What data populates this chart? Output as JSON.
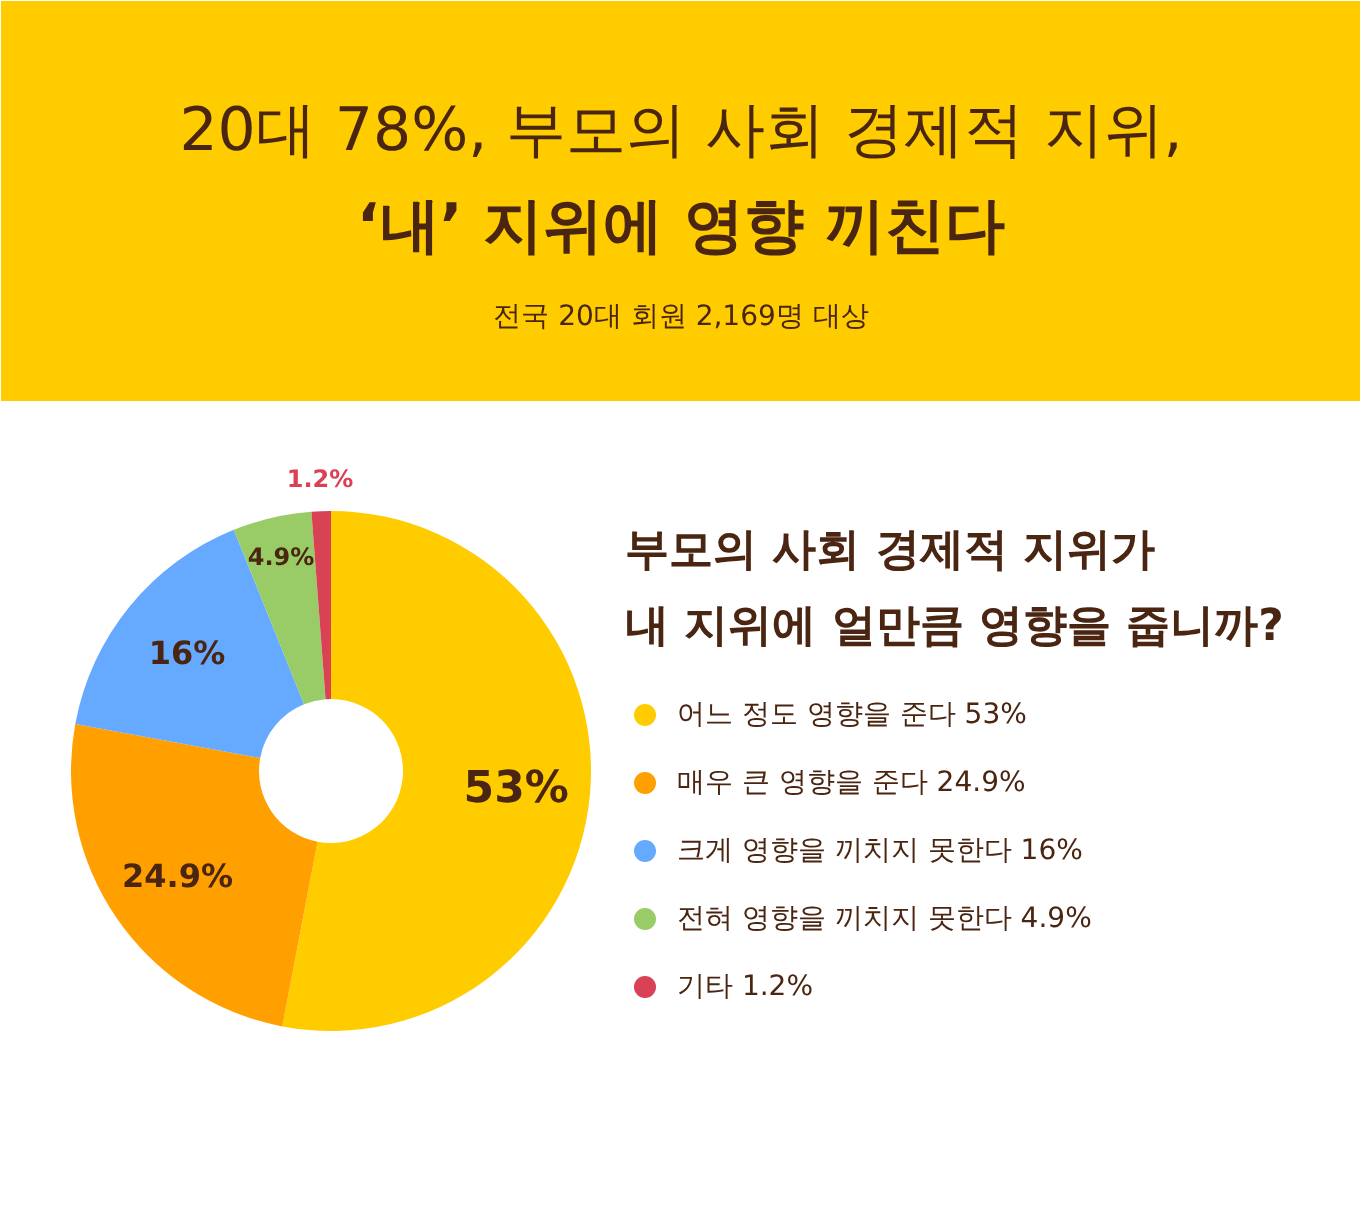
{
  "chart_data": {
    "type": "donut",
    "title": "20대 78%, 부모의 사회 경제적 지위,\n‘내’ 지위에 영향 끼친다",
    "subtitle": "전국 20대 회원 2,169명 대상",
    "annotations": [
      "부모의 사회 경제적 지위가\n내 지위에 얼만큼 영향을 줍니까?"
    ],
    "categories": [
      "어느 정도 영향을 준다",
      "매우 큰 영향을 준다",
      "크게 영향을 끼치지 못한다",
      "전혀 영향을 끼치지 못한다",
      "기타"
    ],
    "values": [
      53,
      24.9,
      16,
      4.9,
      1.2
    ],
    "value_labels": [
      "53%",
      "24.9%",
      "16%",
      "4.9%",
      "1.2%"
    ],
    "colors": [
      "#ffcc00",
      "#ff9f00",
      "#66aaff",
      "#99cc66",
      "#d94155"
    ],
    "legend": "right"
  }
}
